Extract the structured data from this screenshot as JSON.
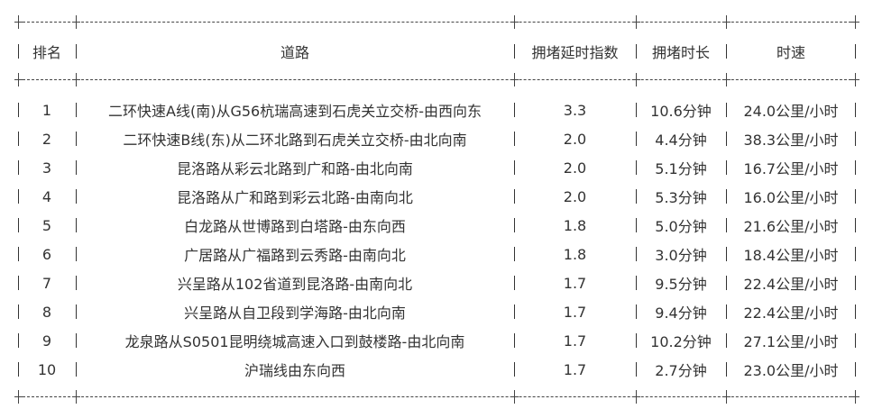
{
  "table": {
    "headers": [
      "排名",
      "道路",
      "拥堵延时指数",
      "拥堵时长",
      "时速"
    ],
    "rows": [
      [
        "1",
        "二环快速A线(南)从G56杭瑞高速到石虎关立交桥-由西向东",
        "3.3",
        "10.6分钟",
        "24.0公里/小时"
      ],
      [
        "2",
        "二环快速B线(东)从二环北路到石虎关立交桥-由北向南",
        "2.0",
        "4.4分钟",
        "38.3公里/小时"
      ],
      [
        "3",
        "昆洛路从彩云北路到广和路-由北向南",
        "2.0",
        "5.1分钟",
        "16.7公里/小时"
      ],
      [
        "4",
        "昆洛路从广和路到彩云北路-由南向北",
        "2.0",
        "5.3分钟",
        "16.0公里/小时"
      ],
      [
        "5",
        "白龙路从世博路到白塔路-由东向西",
        "1.8",
        "5.0分钟",
        "21.6公里/小时"
      ],
      [
        "6",
        "广居路从广福路到云秀路-由南向北",
        "1.8",
        "3.0分钟",
        "18.4公里/小时"
      ],
      [
        "7",
        "兴呈路从102省道到昆洛路-由南向北",
        "1.7",
        "9.5分钟",
        "22.4公里/小时"
      ],
      [
        "8",
        "兴呈路从自卫段到学海路-由北向南",
        "1.7",
        "9.4分钟",
        "22.4公里/小时"
      ],
      [
        "9",
        "龙泉路从S0501昆明绕城高速入口到鼓楼路-由北向南",
        "1.7",
        "10.2分钟",
        "27.1公里/小时"
      ],
      [
        "10",
        "沪瑞线由东向西",
        "1.7",
        "2.7分钟",
        "23.0公里/小时"
      ]
    ]
  }
}
